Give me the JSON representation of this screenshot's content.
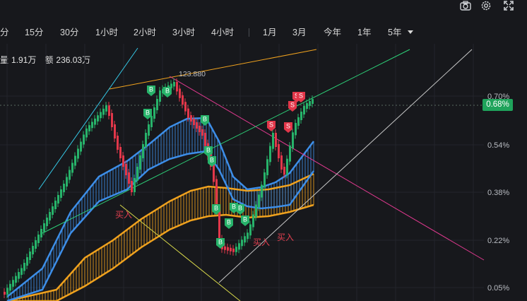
{
  "toolbar_icons": [
    "camera-icon",
    "gear-icon",
    "fullscreen-icon"
  ],
  "timeframes": [
    {
      "label": "分"
    },
    {
      "label": "15分"
    },
    {
      "label": "30分"
    },
    {
      "label": "1小时"
    },
    {
      "label": "2小时"
    },
    {
      "label": "3小时"
    },
    {
      "label": "4小时"
    },
    {
      "label": "1月"
    },
    {
      "label": "3月"
    },
    {
      "label": "今年"
    },
    {
      "label": "1年"
    },
    {
      "label": "5年"
    }
  ],
  "volume_info": {
    "vol_label": "量",
    "vol_value": "1.91万",
    "amount_label": "额",
    "amount_value": "236.03万"
  },
  "price_axis": [
    "0.70%",
    "0.54%",
    "0.38%",
    "0.22%",
    "0.05%"
  ],
  "current_price": "0.68%",
  "high_annotation": "123.880",
  "buy_label": "买入",
  "buy_marker": "B",
  "sell_marker": "S",
  "colors": {
    "background": "#17181c",
    "up": "#27b36a",
    "down": "#e2374a",
    "blue_band": "#3d8ee8",
    "orange_band": "#f0a21e",
    "magenta_count": "#d21ed2",
    "green_count": "#5fd06a",
    "price_tag": "#1fa35b"
  }
}
